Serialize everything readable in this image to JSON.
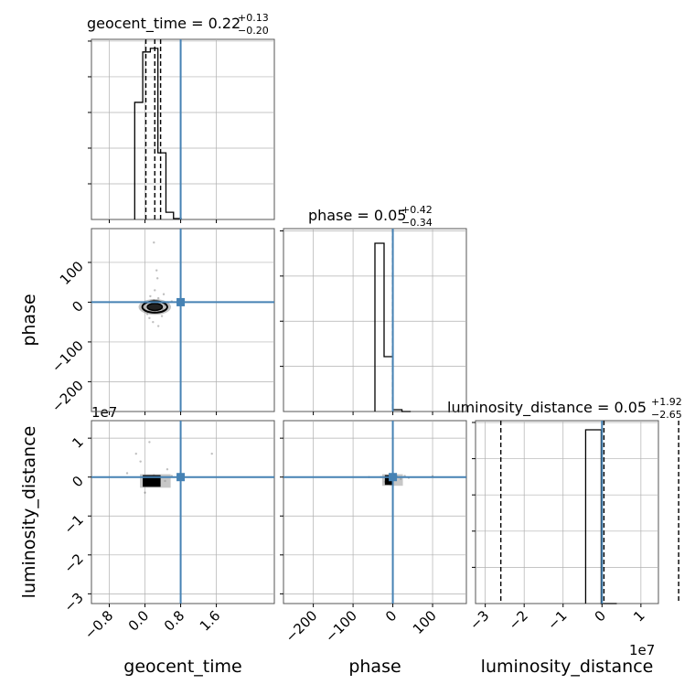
{
  "colors": {
    "truth": "#4682b4",
    "hist": "#000000",
    "grid": "#b0b0b0"
  },
  "chart_data": {
    "type": "corner",
    "parameters": [
      "geocent_time",
      "phase",
      "luminosity_distance"
    ],
    "titles": [
      {
        "name": "geocent_time",
        "value": "0.22",
        "plus": "+0.13",
        "minus": "−0.20"
      },
      {
        "name": "phase",
        "value": "0.05",
        "plus": "+0.42",
        "minus": "−0.34"
      },
      {
        "name": "luminosity_distance",
        "value": "0.05",
        "plus": "+1.92",
        "minus": "−2.65"
      }
    ],
    "axis_labels": {
      "x": [
        "geocent_time",
        "phase",
        "luminosity_distance"
      ],
      "y": [
        "phase",
        "luminosity_distance"
      ]
    },
    "offset_labels": {
      "lumdist_y": "1e7",
      "lumdist_x": "1e7"
    },
    "ranges": {
      "geocent_time": [
        -1.2,
        2.9
      ],
      "phase": [
        -275,
        185
      ],
      "luminosity_distance": [
        -3.25,
        1.45
      ]
    },
    "ticks": {
      "geocent_time": {
        "values": [
          -0.8,
          0.0,
          0.8,
          1.6
        ],
        "labels": [
          "−0.8",
          "0.0",
          "0.8",
          "1.6"
        ]
      },
      "phase_x": {
        "values": [
          -200,
          -100,
          0,
          100
        ],
        "labels": [
          "−200",
          "−100",
          "0",
          "100"
        ]
      },
      "phase_y": {
        "values": [
          -200,
          -100,
          0,
          100
        ],
        "labels": [
          "−200",
          "−100",
          "0",
          "100"
        ]
      },
      "lumdist_x": {
        "values": [
          -3,
          -2,
          -1,
          0,
          1
        ],
        "labels": [
          "−3",
          "−2",
          "−1",
          "0",
          "1"
        ]
      },
      "lumdist_y": {
        "values": [
          -3,
          -2,
          -1,
          0,
          1
        ],
        "labels": [
          "−3",
          "−2",
          "−1",
          "0",
          "1"
        ]
      }
    },
    "truths": {
      "geocent_time": 0.8,
      "phase": 0.0,
      "luminosity_distance": 0.0
    },
    "histograms": {
      "geocent_time": {
        "edges": [
          -0.23,
          -0.05,
          0.12,
          0.29,
          0.47,
          0.64,
          0.81
        ],
        "counts": [
          0.65,
          0.93,
          0.95,
          0.37,
          0.04,
          0.005
        ],
        "quantiles": [
          0.02,
          0.22,
          0.35
        ]
      },
      "phase": {
        "edges": [
          -45,
          -22,
          0,
          23,
          45
        ],
        "counts": [
          0.92,
          0.3,
          0.01,
          0.0
        ],
        "quantiles": [
          -0.29,
          0.05,
          0.47
        ]
      },
      "luminosity_distance": {
        "edges": [
          -0.42,
          -0.02,
          0.38
        ],
        "counts": [
          0.95,
          0.0
        ],
        "quantiles": [
          -2.6,
          0.05,
          1.97
        ]
      }
    },
    "scatter": {
      "phase_vs_geocent_time": {
        "points": [
          [
            0.1,
            -20
          ],
          [
            0.2,
            -15
          ],
          [
            0.3,
            -25
          ],
          [
            0.15,
            -10
          ],
          [
            0.25,
            -5
          ],
          [
            0.05,
            -30
          ],
          [
            0.35,
            -12
          ],
          [
            0.4,
            -18
          ],
          [
            0.2,
            5
          ],
          [
            0.3,
            10
          ],
          [
            0.1,
            -40
          ],
          [
            0.22,
            30
          ],
          [
            0.28,
            60
          ],
          [
            0.18,
            -50
          ],
          [
            0.45,
            -8
          ],
          [
            0.5,
            0
          ],
          [
            0.12,
            15
          ],
          [
            0.38,
            -35
          ],
          [
            0.26,
            80
          ],
          [
            0.2,
            150
          ],
          [
            0.3,
            -60
          ],
          [
            0.6,
            2
          ],
          [
            0.02,
            -22
          ],
          [
            0.42,
            20
          ],
          [
            0.33,
            -3
          ]
        ],
        "contour_center": [
          0.22,
          -12
        ],
        "contour_radii": [
          0.28,
          22
        ]
      },
      "lumdist_vs_geocent_time": {
        "points": [
          [
            0.05,
            0.0
          ],
          [
            0.15,
            -0.1
          ],
          [
            0.25,
            -0.05
          ],
          [
            0.3,
            -0.2
          ],
          [
            0.2,
            0.05
          ],
          [
            0.1,
            -0.15
          ],
          [
            -0.2,
            0.6
          ],
          [
            -0.1,
            0.4
          ],
          [
            0.0,
            -0.4
          ],
          [
            -0.4,
            0.1
          ],
          [
            0.5,
            0.2
          ],
          [
            1.5,
            0.6
          ],
          [
            0.35,
            0.0
          ],
          [
            0.6,
            0.03
          ],
          [
            0.45,
            -0.1
          ],
          [
            0.1,
            0.9
          ]
        ],
        "block_x": [
          -0.05,
          0.35
        ],
        "block_y": [
          -0.25,
          0.05
        ]
      },
      "lumdist_vs_phase": {
        "points": [
          [
            -10,
            -0.05
          ],
          [
            0,
            -0.1
          ],
          [
            5,
            0.0
          ],
          [
            -20,
            -0.12
          ],
          [
            10,
            0.02
          ],
          [
            -5,
            -0.2
          ],
          [
            20,
            -0.05
          ],
          [
            -30,
            0.0
          ],
          [
            30,
            0.03
          ],
          [
            40,
            -0.02
          ],
          [
            -60,
            0.0
          ],
          [
            100,
            0.02
          ]
        ],
        "block_x": [
          -20,
          0
        ],
        "block_y": [
          -0.2,
          0.05
        ]
      }
    }
  }
}
